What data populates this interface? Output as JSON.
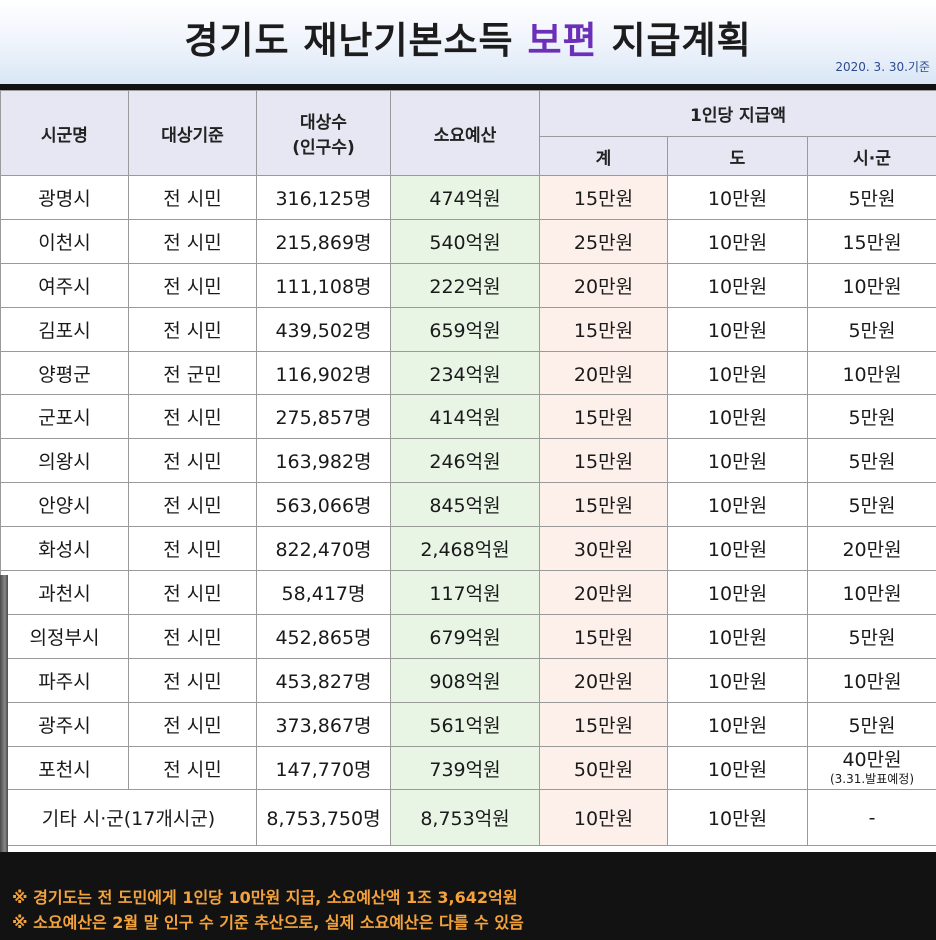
{
  "title": {
    "part1": "경기도 재난기본소득 ",
    "highlight": "보편",
    "part2": " 지급계획"
  },
  "date": "2020. 3. 30.기준",
  "headers": {
    "city": "시군명",
    "criteria": "대상기준",
    "population": "대상수\n(인구수)",
    "budget": "소요예산",
    "per_person": "1인당 지급액",
    "total": "계",
    "province": "도",
    "city_county": "시·군"
  },
  "rows": [
    {
      "city": "광명시",
      "criteria": "전 시민",
      "population": "316,125명",
      "budget": "474억원",
      "total": "15만원",
      "province": "10만원",
      "local": "5만원"
    },
    {
      "city": "이천시",
      "criteria": "전 시민",
      "population": "215,869명",
      "budget": "540억원",
      "total": "25만원",
      "province": "10만원",
      "local": "15만원"
    },
    {
      "city": "여주시",
      "criteria": "전 시민",
      "population": "111,108명",
      "budget": "222억원",
      "total": "20만원",
      "province": "10만원",
      "local": "10만원"
    },
    {
      "city": "김포시",
      "criteria": "전 시민",
      "population": "439,502명",
      "budget": "659억원",
      "total": "15만원",
      "province": "10만원",
      "local": "5만원"
    },
    {
      "city": "양평군",
      "criteria": "전 군민",
      "population": "116,902명",
      "budget": "234억원",
      "total": "20만원",
      "province": "10만원",
      "local": "10만원"
    },
    {
      "city": "군포시",
      "criteria": "전 시민",
      "population": "275,857명",
      "budget": "414억원",
      "total": "15만원",
      "province": "10만원",
      "local": "5만원"
    },
    {
      "city": "의왕시",
      "criteria": "전 시민",
      "population": "163,982명",
      "budget": "246억원",
      "total": "15만원",
      "province": "10만원",
      "local": "5만원"
    },
    {
      "city": "안양시",
      "criteria": "전 시민",
      "population": "563,066명",
      "budget": "845억원",
      "total": "15만원",
      "province": "10만원",
      "local": "5만원"
    },
    {
      "city": "화성시",
      "criteria": "전 시민",
      "population": "822,470명",
      "budget": "2,468억원",
      "total": "30만원",
      "province": "10만원",
      "local": "20만원"
    },
    {
      "city": "과천시",
      "criteria": "전 시민",
      "population": "58,417명",
      "budget": "117억원",
      "total": "20만원",
      "province": "10만원",
      "local": "10만원"
    },
    {
      "city": "의정부시",
      "criteria": "전 시민",
      "population": "452,865명",
      "budget": "679억원",
      "total": "15만원",
      "province": "10만원",
      "local": "5만원"
    },
    {
      "city": "파주시",
      "criteria": "전 시민",
      "population": "453,827명",
      "budget": "908억원",
      "total": "20만원",
      "province": "10만원",
      "local": "10만원"
    },
    {
      "city": "광주시",
      "criteria": "전 시민",
      "population": "373,867명",
      "budget": "561억원",
      "total": "15만원",
      "province": "10만원",
      "local": "5만원"
    },
    {
      "city": "포천시",
      "criteria": "전 시민",
      "population": "147,770명",
      "budget": "739억원",
      "total": "50만원",
      "province": "10만원",
      "local": "40만원",
      "local_note": "(3.31.발표예정)"
    }
  ],
  "other_row": {
    "label": "기타 시·군(17개시군)",
    "population": "8,753,750명",
    "budget": "8,753억원",
    "total": "10만원",
    "province": "10만원",
    "local": "-"
  },
  "footnotes": [
    "※ 경기도는 전 도민에게  1인당 10만원 지급, 소요예산액 1조 3,642억원",
    "※ 소요예산은 2월 말 인구 수 기준 추산으로, 실제 소요예산은 다를 수 있음"
  ],
  "colors": {
    "title_highlight": "#6b2fb8",
    "budget_column": "#e8f5e5",
    "total_column": "#fdf0ea",
    "header_bg": "#e7e7f3",
    "footnote_text": "#f3a23c"
  }
}
